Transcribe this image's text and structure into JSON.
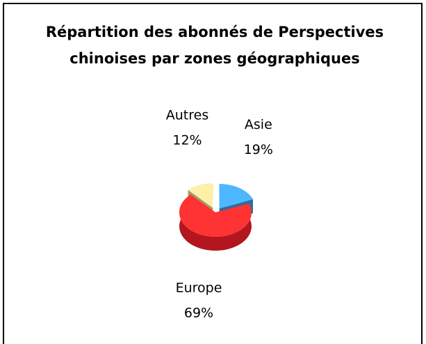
{
  "chart_data": {
    "type": "pie",
    "title": [
      "Répartition des abonnés de Perspectives",
      "chinoises par zones géographiques"
    ],
    "categories": [
      "Asie",
      "Europe",
      "Autres"
    ],
    "values": [
      19,
      69,
      12
    ],
    "value_labels": [
      "19%",
      "69%",
      "12%"
    ],
    "colors": [
      "#4db8ff",
      "#ff3333",
      "#fff0a8"
    ],
    "side_colors": [
      "#2b6e9e",
      "#b3161e",
      "#a39a62"
    ]
  }
}
